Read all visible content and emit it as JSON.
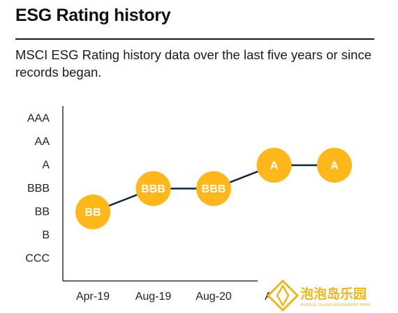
{
  "page": {
    "title": "ESG Rating history",
    "description": "MSCI ESG Rating history data over the last five years or since records began."
  },
  "colors": {
    "marker": "#FFB81C",
    "line": "#0c2340",
    "axis": "#333333",
    "marker_text": "#ffffff"
  },
  "chart_data": {
    "type": "line",
    "title": "",
    "xlabel": "",
    "ylabel": "",
    "y_categories": [
      "CCC",
      "B",
      "BB",
      "BBB",
      "A",
      "AA",
      "AAA"
    ],
    "x": [
      "Apr-19",
      "Aug-19",
      "Aug-20",
      "A…",
      ""
    ],
    "series": [
      {
        "values": [
          "BB",
          "BBB",
          "BBB",
          "A",
          "A"
        ]
      }
    ],
    "grid": false,
    "legend": "none"
  },
  "watermark": {
    "text_cn": "泡泡岛乐园",
    "text_en": "BUBBLE ISLAND AMUSEMENT PARK",
    "icon": "diamond-logo-icon"
  }
}
